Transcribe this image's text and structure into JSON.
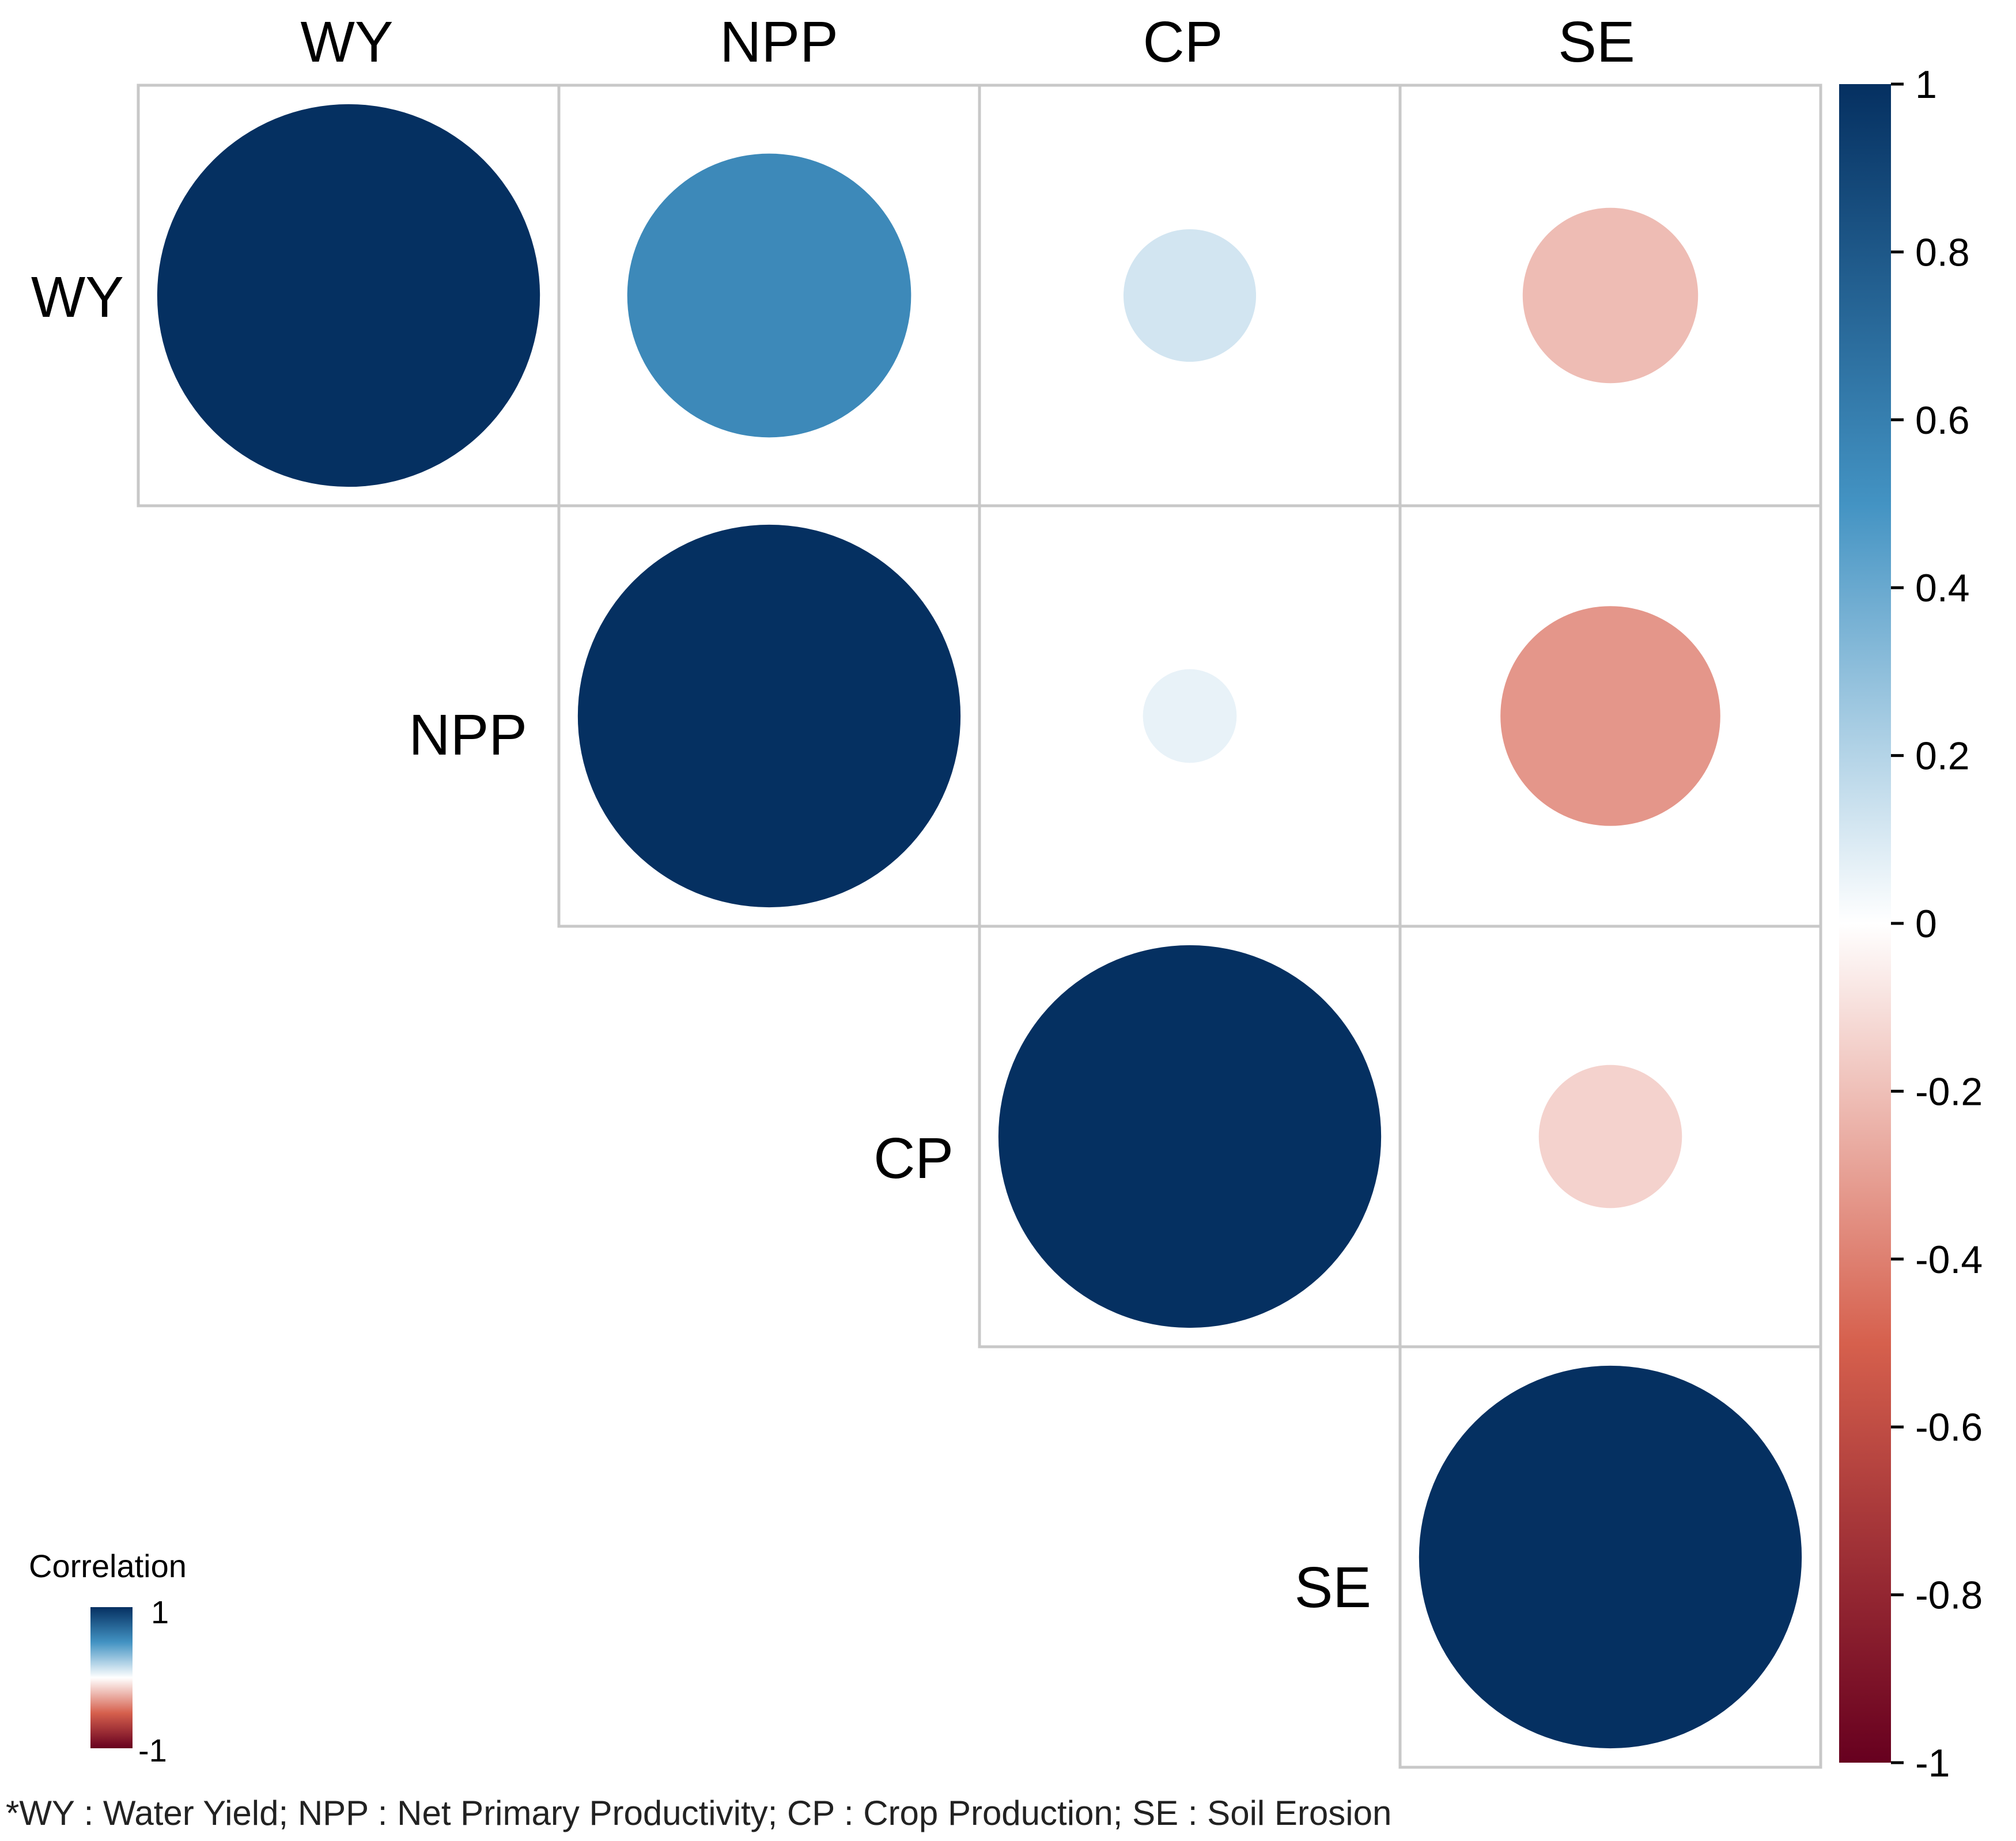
{
  "chart_data": {
    "type": "heatmap",
    "subtype": "correlogram-upper-circles",
    "variables": [
      "WY",
      "NPP",
      "CP",
      "SE"
    ],
    "matrix": [
      [
        1.0,
        0.55,
        0.12,
        -0.21
      ],
      [
        0.55,
        1.0,
        0.06,
        -0.33
      ],
      [
        0.12,
        0.06,
        1.0,
        -0.14
      ],
      [
        -0.21,
        -0.33,
        -0.14,
        1.0
      ]
    ],
    "colorbar": {
      "range": [
        -1,
        1
      ],
      "ticks": [
        "1",
        "0.8",
        "0.6",
        "0.4",
        "0.2",
        "0",
        "-0.2",
        "-0.4",
        "-0.6",
        "-0.8",
        "-1"
      ],
      "colors": {
        "neg_full": "#67001F",
        "neg_mid": "#D6604D",
        "neutral": "#FFFFFF",
        "pos_mid": "#4393C3",
        "pos_full": "#053061"
      }
    },
    "legend": {
      "title": "Correlation",
      "max_label": "1",
      "min_label": "-1"
    },
    "footnote": "*WY : Water Yield; NPP : Net Primary Productivity; CP : Crop Production; SE : Soil Erosion"
  }
}
